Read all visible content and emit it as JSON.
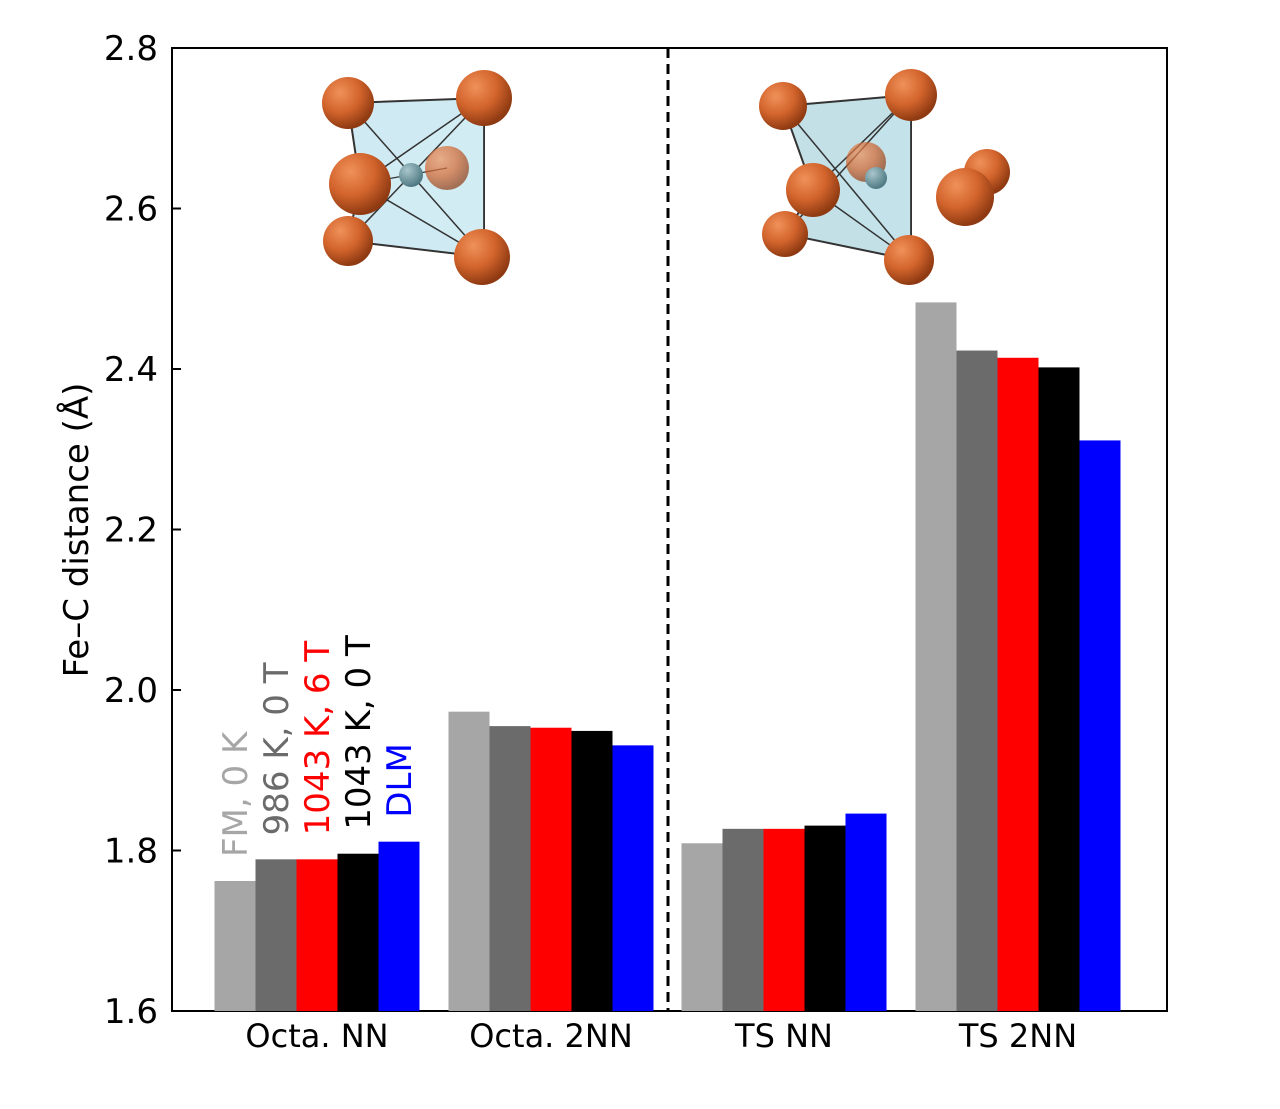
{
  "chart_data": {
    "type": "bar",
    "title": "",
    "xlabel": "",
    "ylabel": "Fe–C distance (Å)",
    "ylim": [
      1.6,
      2.8
    ],
    "yticks": [
      "1.6",
      "1.8",
      "2.0",
      "2.2",
      "2.4",
      "2.6",
      "2.8"
    ],
    "ytick_values": [
      1.6,
      1.8,
      2.0,
      2.2,
      2.4,
      2.6,
      2.8
    ],
    "categories": [
      "Octa. NN",
      "Octa. 2NN",
      "TS NN",
      "TS 2NN"
    ],
    "divider_after_category": 1,
    "divider_style": "dashed",
    "grid": false,
    "legend_placement": "rotated text above first group",
    "series": [
      {
        "name": "FM, 0 K",
        "color": "#a6a6a6",
        "values": [
          1.762,
          1.973,
          1.809,
          2.483
        ]
      },
      {
        "name": "986 K, 0 T",
        "color": "#6b6b6b",
        "values": [
          1.789,
          1.955,
          1.827,
          2.423
        ]
      },
      {
        "name": "1043 K, 6 T",
        "color": "#ff0000",
        "values": [
          1.789,
          1.953,
          1.827,
          2.414
        ]
      },
      {
        "name": "1043 K, 0 T",
        "color": "#000000",
        "values": [
          1.796,
          1.949,
          1.831,
          2.402
        ]
      },
      {
        "name": "DLM",
        "color": "#0000ff",
        "values": [
          1.811,
          1.931,
          1.846,
          2.311
        ]
      }
    ]
  },
  "insets": [
    {
      "name": "octahedral-site-structure",
      "atom_color": "#d2642c",
      "cage_color": "#bfe3ee",
      "carbon_color": "#6f9aa3"
    },
    {
      "name": "transition-state-structure",
      "atom_color": "#d2642c",
      "cage_color": "#a9d3dd",
      "carbon_color": "#6f9aa3"
    }
  ]
}
